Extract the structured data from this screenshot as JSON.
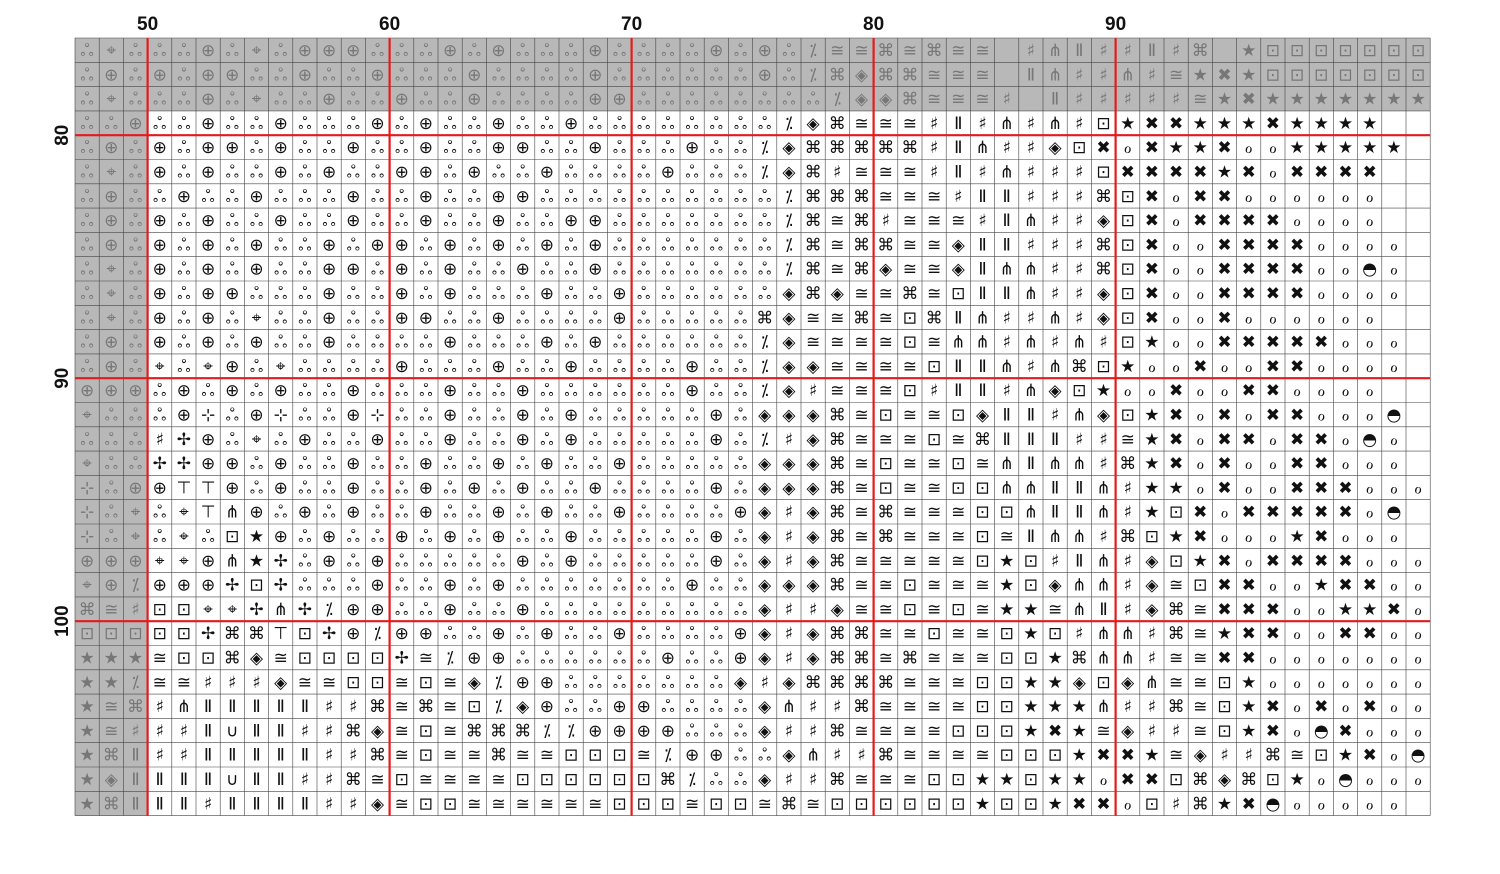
{
  "pattern": {
    "column_start": 47,
    "row_start": 76,
    "columns": 56,
    "rows": 32,
    "grid_every": 10,
    "colors": {
      "grid_major": "#e21b1b",
      "grid_minor": "#444444",
      "overlap_cells": "#b8b8b8"
    },
    "column_labels": [
      {
        "col": 50,
        "text": "50"
      },
      {
        "col": 60,
        "text": "60"
      },
      {
        "col": 70,
        "text": "70"
      },
      {
        "col": 80,
        "text": "80"
      },
      {
        "col": 90,
        "text": "90"
      }
    ],
    "row_labels": [
      {
        "row": 80,
        "text": "80"
      },
      {
        "row": 90,
        "text": "90"
      },
      {
        "row": 100,
        "text": "100"
      }
    ],
    "grey_top_rows": 3,
    "grey_left_cols": 3,
    "symbols": {
      "A": "ஃ",
      "B": "⊕",
      "C": "⌘",
      "D": "≅",
      "E": "⊡",
      "F": "★",
      "G": "⁒",
      "H": "⋔",
      "I": "♯",
      "J": "Ⅱ",
      "K": "◈",
      "L": "ℴ",
      "M": "✖",
      "N": "◓",
      "O": "✢",
      "P": "⊤",
      "Q": "⌖",
      "R": "⊹",
      "S": "∪"
    },
    "rows_data": [
      "AQAAABAQABBBAAABABAAABAAAABABAGDDCDCDD IHJIIJIC FEEEEEEEEEE",
      "ABABABBAABAABAAABAAAABAAAAAABAGCKCCDDD JHIIHIDFMFEEEEEEEEE",
      "AQAAABAQAABAABAABAAAABBAAAAAAAAGKKCDDDI JIIIIIDFMFFFFFFFFFF",
      "AABAABAABAAABABAABAABAAAAAAAAGKCDDDIJIHIHIEFMMFFFMFFFF",
      "ABABABBABAABAABAABBAABAAABAAGKCCCCCIJHIIKEMLMFFMLLFFFFF",
      "AQABABAABABAABBABAABAAAABAAAGKCIDDDIJIHIIIEMMMMFMLMMMM",
      "ABAABAABAAABAABAABBAAAAAAAAAAGCCCDDDIJJIIICEMLMMLLLLLL",
      "ABABABAABAABAABAABAABBAAAAAAAGCDCIDDDIJHIIKEMLMMMMLLLL",
      "ABABABABAABABBABABABABAAAAAAAGCDCCDDKJJIIICEMLLMMMMLLLL",
      "AQABABABAABBABABAABAABAAAAAAAGCDCKDDKJHHIICEMLLMMMMLLNL",
      "AQABABBAAABAABABAAABAABAAAAAAKCKDDCDEJJHIIKEMLLMMMMLLLL",
      "AQABABAQAABAABBAABAAAABAAAAACKDDCDECJHIIHIKEMLLMLLLLLL",
      "ABABABABAABAAAABAAABABAAAAAAGKDDDDEDHHIHIHIEFLLMMMMMLLL",
      "ABAQAQBAQAAAABAAABAABAAAABAAGKKDDDDEJJHIHCEFLLMLLMMLLLL",
      "BBBABABABAABAAABAABAAAAAABAAGKIDDDEIJJIHKEFLLMLLMMLLLL",
      "QAAABRABRAABRAABAABABAAAAABAKKKCDEDDEKJJIHKEFMLMLMMLLLN",
      "AAAIOBAQABAABAABAABABAAAAABAGIKCDDDEDCJJJIIDFMLMMLMMLNL",
      "QAAOOBBABAABAABAABABAABAAAAAKKKCDEDDEDHJHHICFMLMLLMMLLL",
      "RABBPPBABAABAABABABAABAAAABAKKKCDEDDEEHHJJHIFFLMLLMMMLLL",
      "RAQAQPHBABABAABAABABAABAAAABKIKCDCDDDEEHJJHIFEMLMMMMMLN",
      "RAQAQAEFBABAABABABAABAAAAABAKIKCDCDDDEDJHHICEFMLLLFMLLL",
      "BBBQQBHFOABABAAAAABABAAAAABAKIKCDDDDDEFEIJHIKEFMLMMMMLLL",
      "QBGBBBOEOAAABAABABAAAAAAABAAKKKCDDEDDDFEKHHIKDEMMLLFMMLL",
      "CDIEEQQOHOGBBAABAABAAAAAAAAAKIIKDDEDEDFFDHJIKCDMMMLLFFMLL",
      "EEEEEOCCPEOBGBBAABABAABAAAABKIKCCDDEDDEFEIHHICDFMMLLMMLL",
      "FFFDEECKDEEEEODGBBAAAAAABAABKIKCCDCDDDEEFCHHIDDMMLLLLLLL",
      "FFGDDIIIKDDEEDEDKGBBAAAAAAAKIKCCCCDDDEEFFKEKHDDEFLLLLLLL",
      "FDCIHJJJJJIICDCDEGKBAABBAAAAKHIICDDDDEEFFFHIICDEFMLMLMLLL",
      "FDIIIJSJJIICKDEDCCCGGBBBBAAAKIICDDDDEEEFMFDKIIDEFMLNMLLL",
      "FCJIIJJJJJIICDEDDCDDEEEDGBBAAKHIICDDDDEEEFMMFDKIICDEFMLNLLMLL",
      "FKJJJJSJJIICDEDDDDEEEEEECGAAKIICDDDEEFFEFFLMMECKCEFLNLLLL",
      "FCJJJIJJJJIIKDEEDDDDDDEEEDEEDCDEEEEEEFEEFMMLEICFMNLLLLL"
    ]
  }
}
